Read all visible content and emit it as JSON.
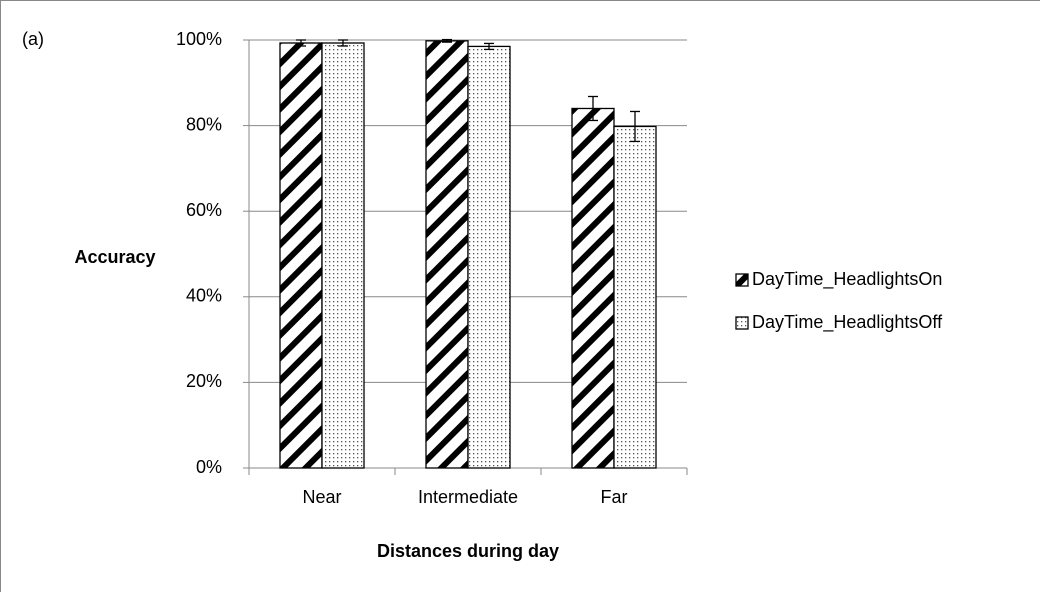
{
  "chart_data": {
    "type": "bar",
    "annotation": "(a)",
    "ylabel": "Accuracy",
    "xlabel": "Distances during day",
    "categories": [
      "Near",
      "Intermediate",
      "Far"
    ],
    "series": [
      {
        "name": "DayTime_HeadlightsOn",
        "color": "#000000",
        "pattern": "hatch",
        "values": [
          99.3,
          99.8,
          84
        ],
        "errors": [
          0.7,
          0.3,
          2.8
        ]
      },
      {
        "name": "DayTime_HeadlightsOff",
        "color": "#000000",
        "pattern": "dots",
        "values": [
          99.3,
          98.5,
          79.8
        ],
        "errors": [
          0.7,
          0.7,
          3.5
        ]
      }
    ],
    "ylim": [
      0,
      100
    ],
    "yticks": [
      {
        "value": 0,
        "label": "0%"
      },
      {
        "value": 20,
        "label": "20%"
      },
      {
        "value": 40,
        "label": "40%"
      },
      {
        "value": 60,
        "label": "60%"
      },
      {
        "value": 80,
        "label": "80%"
      },
      {
        "value": 100,
        "label": "100%"
      }
    ],
    "grid": true,
    "legend": "right"
  }
}
